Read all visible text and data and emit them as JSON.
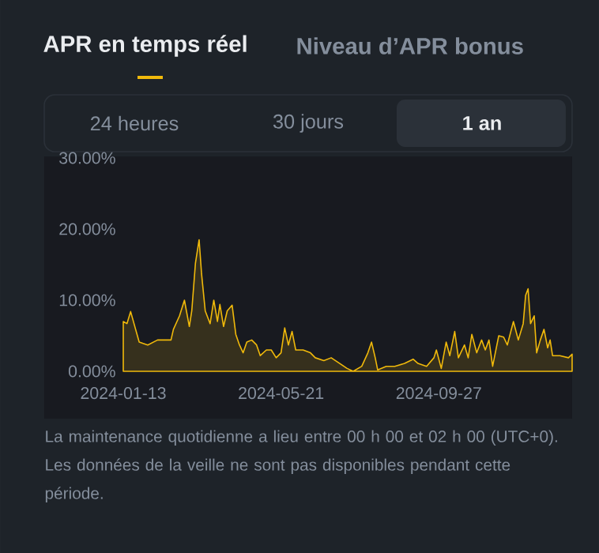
{
  "chart_data": {
    "type": "area",
    "title": "APR en temps réel",
    "annotations": [
      "Niveau d’APR bonus",
      "24 heures",
      "30 jours",
      "1 an",
      "La maintenance quotidienne a lieu entre 00 h 00 et 02 h 00 (UTC+0). Les données de la veille ne sont pas disponibles pendant cette période."
    ],
    "color": "#f0b90b",
    "x": [
      "2024-01-13",
      "2024-01-16",
      "2024-01-19",
      "2024-01-26",
      "2024-02-02",
      "2024-02-10",
      "2024-02-21",
      "2024-02-23",
      "2024-02-28",
      "2024-03-03",
      "2024-03-07",
      "2024-03-09",
      "2024-03-12",
      "2024-03-15",
      "2024-03-17",
      "2024-03-20",
      "2024-03-24",
      "2024-03-27",
      "2024-03-30",
      "2024-04-01",
      "2024-04-04",
      "2024-04-07",
      "2024-04-11",
      "2024-04-14",
      "2024-04-17",
      "2024-04-20",
      "2024-04-23",
      "2024-04-27",
      "2024-05-01",
      "2024-05-04",
      "2024-05-09",
      "2024-05-13",
      "2024-05-17",
      "2024-05-21",
      "2024-05-24",
      "2024-05-27",
      "2024-05-30",
      "2024-06-02",
      "2024-06-08",
      "2024-06-14",
      "2024-06-18",
      "2024-06-25",
      "2024-07-01",
      "2024-07-08",
      "2024-07-14",
      "2024-07-19",
      "2024-07-26",
      "2024-07-31",
      "2024-08-03",
      "2024-08-06",
      "2024-08-08",
      "2024-08-15",
      "2024-08-22",
      "2024-08-30",
      "2024-09-06",
      "2024-09-10",
      "2024-09-17",
      "2024-09-23",
      "2024-09-25",
      "2024-09-29",
      "2024-10-03",
      "2024-10-06",
      "2024-10-10",
      "2024-10-13",
      "2024-10-18",
      "2024-10-21",
      "2024-10-24",
      "2024-10-28",
      "2024-11-01",
      "2024-11-04",
      "2024-11-07",
      "2024-11-10",
      "2024-11-15",
      "2024-11-19",
      "2024-11-22",
      "2024-11-27",
      "2024-12-01",
      "2024-12-05",
      "2024-12-07",
      "2024-12-09",
      "2024-12-11",
      "2024-12-14",
      "2024-12-16",
      "2024-12-19",
      "2024-12-22",
      "2024-12-25",
      "2024-12-27",
      "2024-12-29",
      "2025-01-04",
      "2025-01-11",
      "2025-01-14"
    ],
    "values": [
      7.0,
      6.7,
      8.4,
      4.1,
      3.7,
      4.4,
      4.4,
      5.9,
      7.8,
      10.0,
      6.3,
      8.5,
      15.2,
      18.5,
      13.7,
      8.5,
      6.7,
      10.0,
      7.0,
      9.4,
      6.3,
      8.5,
      9.3,
      5.2,
      3.7,
      2.6,
      4.1,
      4.4,
      3.7,
      2.2,
      3.0,
      3.0,
      1.9,
      2.6,
      6.1,
      3.7,
      5.6,
      3.0,
      3.0,
      2.6,
      1.9,
      1.5,
      1.9,
      1.1,
      0.4,
      0.0,
      0.7,
      2.6,
      4.1,
      1.9,
      0.2,
      0.7,
      0.7,
      1.1,
      1.7,
      1.1,
      0.7,
      1.9,
      3.0,
      0.4,
      4.1,
      2.2,
      5.6,
      1.9,
      3.7,
      1.9,
      5.2,
      2.6,
      4.4,
      3.0,
      4.4,
      0.7,
      5.0,
      4.8,
      3.7,
      7.0,
      4.4,
      6.7,
      10.7,
      11.6,
      6.7,
      7.8,
      2.6,
      4.4,
      5.9,
      3.3,
      4.4,
      2.2,
      2.2,
      1.9,
      2.4
    ],
    "xlim": [
      "2024-01-13",
      "2025-01-14"
    ],
    "xticks": [
      "2024-01-13",
      "2024-05-21",
      "2024-09-27"
    ],
    "ylim": [
      0,
      30
    ],
    "yticks": [
      {
        "value": 0,
        "label": "0.00%"
      },
      {
        "value": 10,
        "label": "10.00%"
      },
      {
        "value": 20,
        "label": "20.00%"
      },
      {
        "value": 30,
        "label": "30.00%"
      }
    ]
  }
}
